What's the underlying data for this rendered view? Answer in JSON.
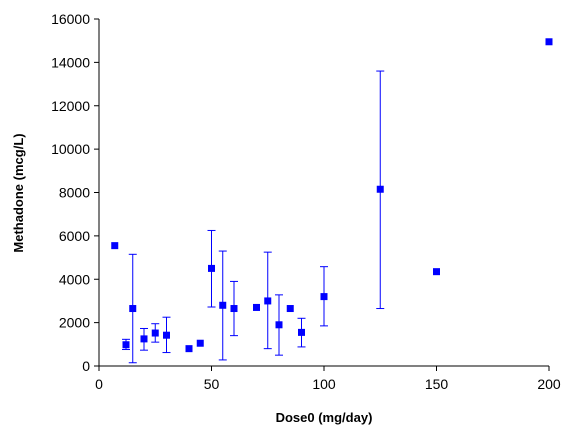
{
  "chart_data": {
    "type": "scatter",
    "title": "",
    "xlabel": "Dose0 (mg/day)",
    "ylabel": "Methadone (mcg/L)",
    "xlim": [
      0,
      200
    ],
    "ylim": [
      0,
      16000
    ],
    "x_ticks": [
      "0",
      "50",
      "100",
      "150",
      "200"
    ],
    "y_ticks": [
      "0",
      "2000",
      "4000",
      "6000",
      "8000",
      "10000",
      "12000",
      "14000",
      "16000"
    ],
    "grid": false,
    "legend": "none",
    "marker": "square",
    "color": "#0000ff",
    "points": [
      {
        "x": 7,
        "y": 5550
      },
      {
        "x": 12,
        "y": 980,
        "err_low": 760,
        "err_high": 1230
      },
      {
        "x": 15,
        "y": 2650,
        "err_low": 150,
        "err_high": 5150
      },
      {
        "x": 20,
        "y": 1250,
        "err_low": 730,
        "err_high": 1730
      },
      {
        "x": 25,
        "y": 1520,
        "err_low": 1100,
        "err_high": 1950
      },
      {
        "x": 30,
        "y": 1420,
        "err_low": 620,
        "err_high": 2250
      },
      {
        "x": 40,
        "y": 800
      },
      {
        "x": 45,
        "y": 1050
      },
      {
        "x": 50,
        "y": 4500,
        "err_low": 2720,
        "err_high": 6250
      },
      {
        "x": 55,
        "y": 2800,
        "err_low": 280,
        "err_high": 5300
      },
      {
        "x": 60,
        "y": 2650,
        "err_low": 1400,
        "err_high": 3900
      },
      {
        "x": 70,
        "y": 2700
      },
      {
        "x": 75,
        "y": 3000,
        "err_low": 800,
        "err_high": 5250
      },
      {
        "x": 80,
        "y": 1900,
        "err_low": 500,
        "err_high": 3280
      },
      {
        "x": 85,
        "y": 2650
      },
      {
        "x": 90,
        "y": 1550,
        "err_low": 880,
        "err_high": 2200
      },
      {
        "x": 100,
        "y": 3200,
        "err_low": 1850,
        "err_high": 4580
      },
      {
        "x": 125,
        "y": 8150,
        "err_low": 2650,
        "err_high": 13600
      },
      {
        "x": 150,
        "y": 4350
      },
      {
        "x": 200,
        "y": 14950
      }
    ]
  }
}
